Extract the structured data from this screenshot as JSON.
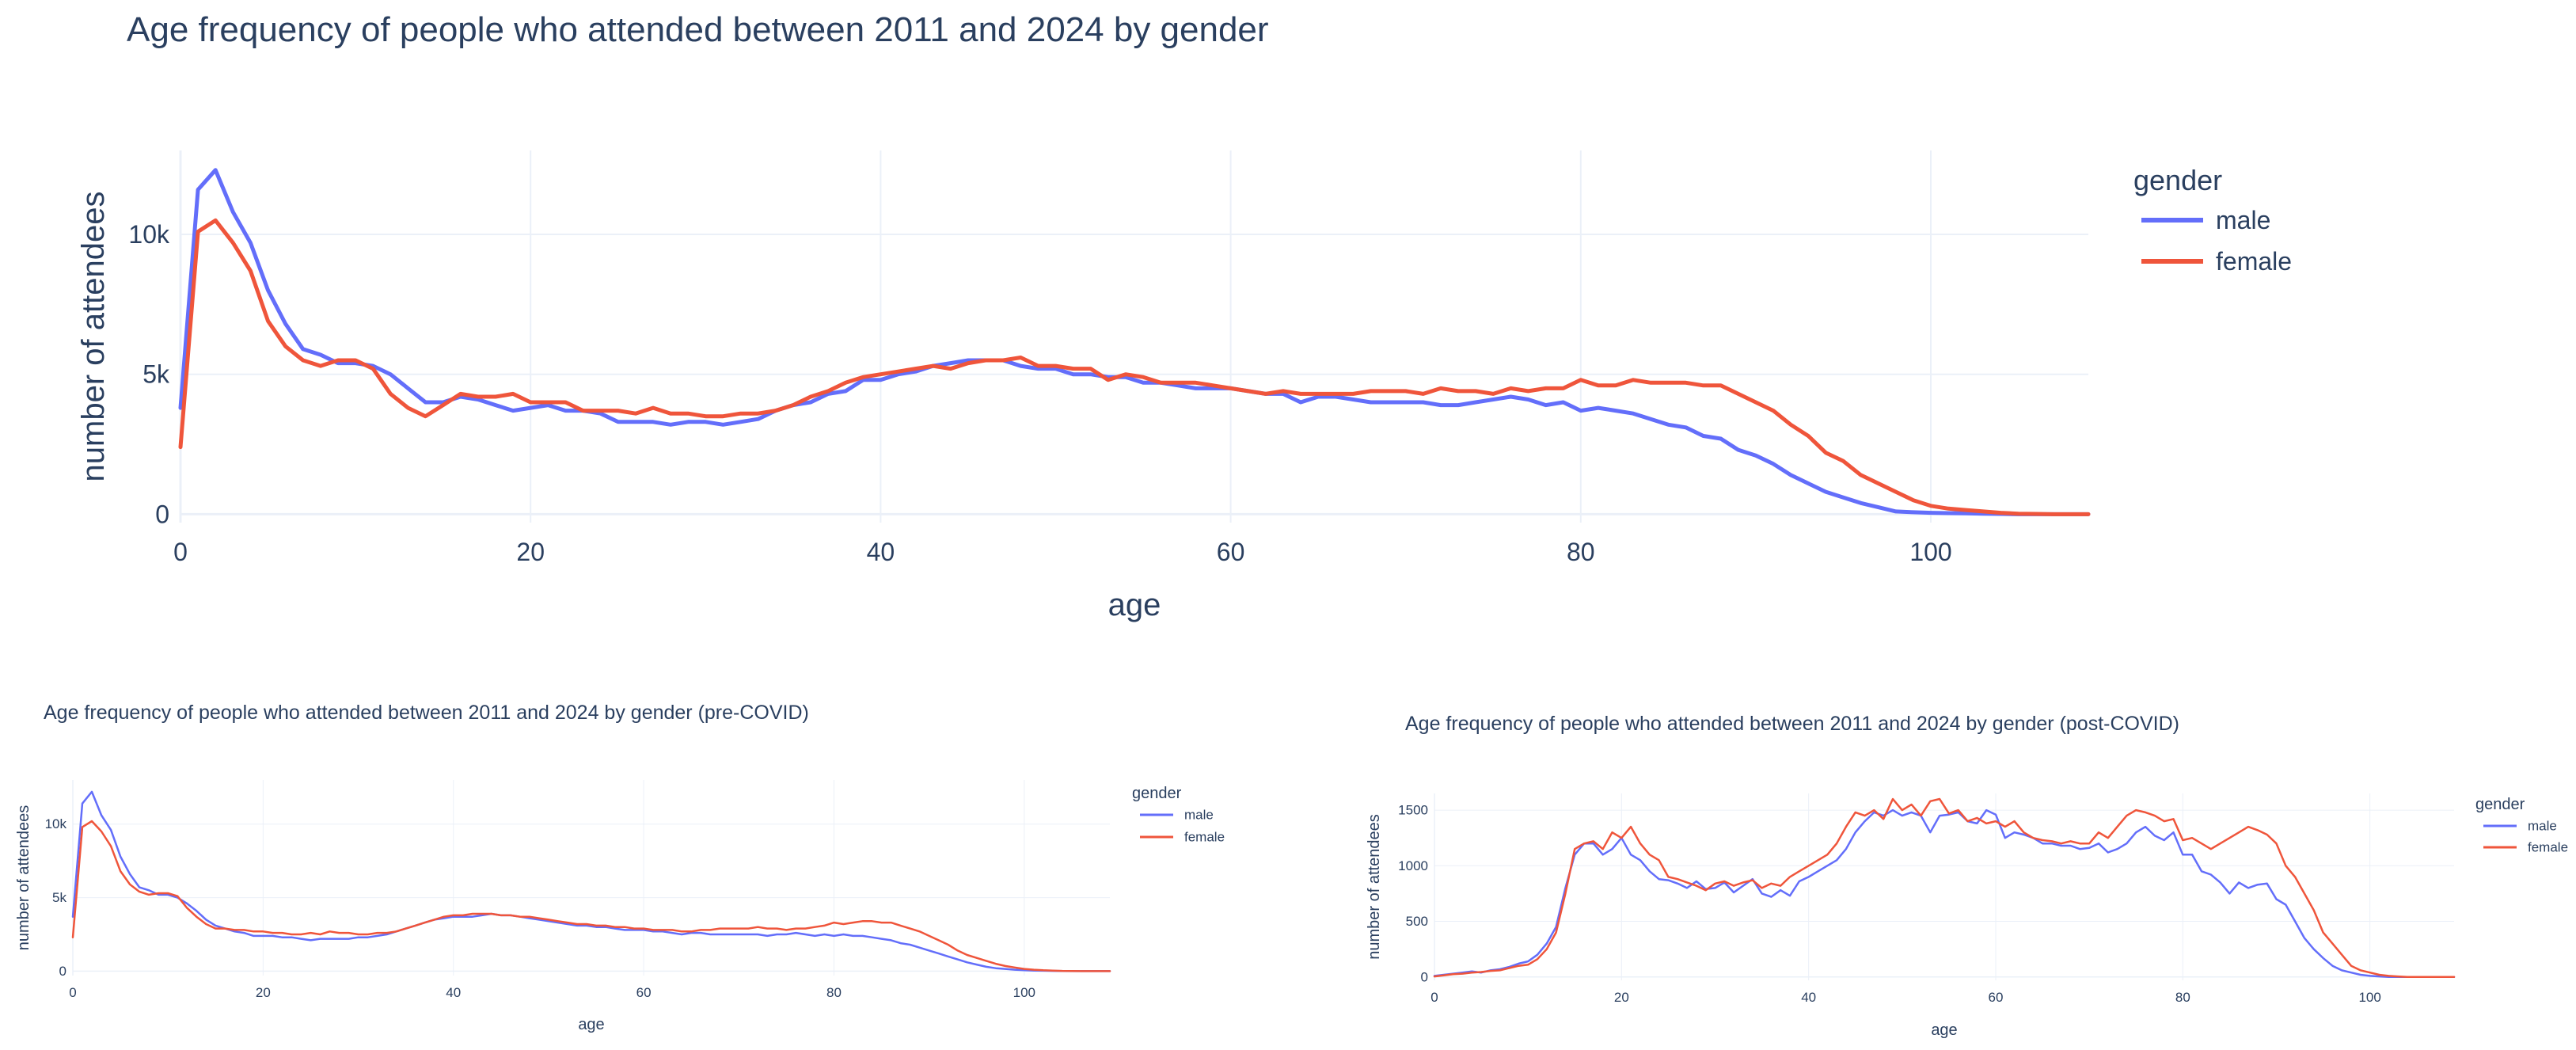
{
  "chart_data": [
    {
      "id": "overall",
      "type": "line",
      "title": "Age frequency of people who attended between 2011 and 2024 by gender",
      "xlabel": "age",
      "ylabel": "number of attendees",
      "xlim": [
        0,
        109
      ],
      "ylim": [
        -300,
        13000
      ],
      "xticks": [
        0,
        20,
        40,
        60,
        80,
        100
      ],
      "xtick_labels": [
        "0",
        "20",
        "40",
        "60",
        "80",
        "100"
      ],
      "yticks": [
        0,
        5000,
        10000
      ],
      "ytick_labels": [
        "0",
        "5k",
        "10k"
      ],
      "legend_title": "gender",
      "legend_position": "top-right outside",
      "x": [
        0,
        1,
        2,
        3,
        4,
        5,
        6,
        7,
        8,
        9,
        10,
        11,
        12,
        13,
        14,
        15,
        16,
        17,
        18,
        19,
        20,
        21,
        22,
        23,
        24,
        25,
        26,
        27,
        28,
        29,
        30,
        31,
        32,
        33,
        34,
        35,
        36,
        37,
        38,
        39,
        40,
        41,
        42,
        43,
        44,
        45,
        46,
        47,
        48,
        49,
        50,
        51,
        52,
        53,
        54,
        55,
        56,
        57,
        58,
        59,
        60,
        61,
        62,
        63,
        64,
        65,
        66,
        67,
        68,
        69,
        70,
        71,
        72,
        73,
        74,
        75,
        76,
        77,
        78,
        79,
        80,
        81,
        82,
        83,
        84,
        85,
        86,
        87,
        88,
        89,
        90,
        91,
        92,
        93,
        94,
        95,
        96,
        97,
        98,
        99,
        100,
        101,
        102,
        103,
        104,
        105,
        106,
        107,
        108,
        109
      ],
      "series": [
        {
          "name": "male",
          "color": "#636efa",
          "values": [
            3800,
            11600,
            12300,
            10800,
            9700,
            8000,
            6800,
            5900,
            5700,
            5400,
            5400,
            5300,
            5000,
            4500,
            4000,
            4000,
            4200,
            4100,
            3900,
            3700,
            3800,
            3900,
            3700,
            3700,
            3600,
            3300,
            3300,
            3300,
            3200,
            3300,
            3300,
            3200,
            3300,
            3400,
            3700,
            3900,
            4000,
            4300,
            4400,
            4800,
            4800,
            5000,
            5100,
            5300,
            5400,
            5500,
            5500,
            5500,
            5300,
            5200,
            5200,
            5000,
            5000,
            4900,
            4900,
            4700,
            4700,
            4600,
            4500,
            4500,
            4500,
            4400,
            4300,
            4300,
            4000,
            4200,
            4200,
            4100,
            4000,
            4000,
            4000,
            4000,
            3900,
            3900,
            4000,
            4100,
            4200,
            4100,
            3900,
            4000,
            3700,
            3800,
            3700,
            3600,
            3400,
            3200,
            3100,
            2800,
            2700,
            2300,
            2100,
            1800,
            1400,
            1100,
            800,
            600,
            400,
            250,
            100,
            70,
            50,
            40,
            30,
            20,
            10,
            0,
            0,
            0,
            0,
            0
          ]
        },
        {
          "name": "female",
          "color": "#ef553b",
          "values": [
            2400,
            10100,
            10500,
            9700,
            8700,
            6900,
            6000,
            5500,
            5300,
            5500,
            5500,
            5200,
            4300,
            3800,
            3500,
            3900,
            4300,
            4200,
            4200,
            4300,
            4000,
            4000,
            4000,
            3700,
            3700,
            3700,
            3600,
            3800,
            3600,
            3600,
            3500,
            3500,
            3600,
            3600,
            3700,
            3900,
            4200,
            4400,
            4700,
            4900,
            5000,
            5100,
            5200,
            5300,
            5200,
            5400,
            5500,
            5500,
            5600,
            5300,
            5300,
            5200,
            5200,
            4800,
            5000,
            4900,
            4700,
            4700,
            4700,
            4600,
            4500,
            4400,
            4300,
            4400,
            4300,
            4300,
            4300,
            4300,
            4400,
            4400,
            4400,
            4300,
            4500,
            4400,
            4400,
            4300,
            4500,
            4400,
            4500,
            4500,
            4800,
            4600,
            4600,
            4800,
            4700,
            4700,
            4700,
            4600,
            4600,
            4300,
            4000,
            3700,
            3200,
            2800,
            2200,
            1900,
            1400,
            1100,
            800,
            500,
            300,
            200,
            150,
            100,
            50,
            20,
            10,
            0,
            0,
            0
          ]
        }
      ]
    },
    {
      "id": "pre",
      "type": "line",
      "title": "Age frequency of people who attended between 2011 and 2024 by gender (pre-COVID)",
      "xlabel": "age",
      "ylabel": "number of attendees",
      "xlim": [
        0,
        109
      ],
      "ylim": [
        -300,
        13000
      ],
      "xticks": [
        0,
        20,
        40,
        60,
        80,
        100
      ],
      "xtick_labels": [
        "0",
        "20",
        "40",
        "60",
        "80",
        "100"
      ],
      "yticks": [
        0,
        5000,
        10000
      ],
      "ytick_labels": [
        "0",
        "5k",
        "10k"
      ],
      "legend_title": "gender",
      "legend_position": "top-right outside",
      "x": [
        0,
        1,
        2,
        3,
        4,
        5,
        6,
        7,
        8,
        9,
        10,
        11,
        12,
        13,
        14,
        15,
        16,
        17,
        18,
        19,
        20,
        21,
        22,
        23,
        24,
        25,
        26,
        27,
        28,
        29,
        30,
        31,
        32,
        33,
        34,
        35,
        36,
        37,
        38,
        39,
        40,
        41,
        42,
        43,
        44,
        45,
        46,
        47,
        48,
        49,
        50,
        51,
        52,
        53,
        54,
        55,
        56,
        57,
        58,
        59,
        60,
        61,
        62,
        63,
        64,
        65,
        66,
        67,
        68,
        69,
        70,
        71,
        72,
        73,
        74,
        75,
        76,
        77,
        78,
        79,
        80,
        81,
        82,
        83,
        84,
        85,
        86,
        87,
        88,
        89,
        90,
        91,
        92,
        93,
        94,
        95,
        96,
        97,
        98,
        99,
        100,
        101,
        102,
        103,
        104,
        105,
        106,
        107,
        108,
        109
      ],
      "series": [
        {
          "name": "male",
          "color": "#636efa",
          "values": [
            3700,
            11400,
            12200,
            10600,
            9600,
            7800,
            6600,
            5700,
            5500,
            5200,
            5200,
            5000,
            4600,
            4100,
            3500,
            3100,
            2900,
            2700,
            2600,
            2400,
            2400,
            2400,
            2300,
            2300,
            2200,
            2100,
            2200,
            2200,
            2200,
            2200,
            2300,
            2300,
            2400,
            2500,
            2700,
            2900,
            3100,
            3300,
            3500,
            3600,
            3700,
            3700,
            3700,
            3800,
            3900,
            3800,
            3800,
            3700,
            3600,
            3500,
            3400,
            3300,
            3200,
            3100,
            3100,
            3000,
            3000,
            2900,
            2800,
            2800,
            2800,
            2700,
            2700,
            2600,
            2500,
            2600,
            2600,
            2500,
            2500,
            2500,
            2500,
            2500,
            2500,
            2400,
            2500,
            2500,
            2600,
            2500,
            2400,
            2500,
            2400,
            2500,
            2400,
            2400,
            2300,
            2200,
            2100,
            1900,
            1800,
            1600,
            1400,
            1200,
            1000,
            800,
            600,
            450,
            300,
            200,
            150,
            100,
            60,
            40,
            30,
            20,
            10,
            0,
            0,
            0,
            0,
            0
          ]
        },
        {
          "name": "female",
          "color": "#ef553b",
          "values": [
            2300,
            9800,
            10200,
            9500,
            8500,
            6800,
            5900,
            5400,
            5200,
            5300,
            5300,
            5100,
            4300,
            3700,
            3200,
            2900,
            2900,
            2800,
            2800,
            2700,
            2700,
            2600,
            2600,
            2500,
            2500,
            2600,
            2500,
            2700,
            2600,
            2600,
            2500,
            2500,
            2600,
            2600,
            2700,
            2900,
            3100,
            3300,
            3500,
            3700,
            3800,
            3800,
            3900,
            3900,
            3900,
            3800,
            3800,
            3700,
            3700,
            3600,
            3500,
            3400,
            3300,
            3200,
            3200,
            3100,
            3100,
            3000,
            3000,
            2900,
            2900,
            2800,
            2800,
            2800,
            2700,
            2700,
            2800,
            2800,
            2900,
            2900,
            2900,
            2900,
            3000,
            2900,
            2900,
            2800,
            2900,
            2900,
            3000,
            3100,
            3300,
            3200,
            3300,
            3400,
            3400,
            3300,
            3300,
            3100,
            2900,
            2700,
            2400,
            2100,
            1800,
            1400,
            1100,
            900,
            700,
            500,
            350,
            250,
            150,
            100,
            60,
            40,
            20,
            10,
            0,
            0,
            0,
            0
          ]
        }
      ]
    },
    {
      "id": "post",
      "type": "line",
      "title": "Age frequency of people who attended between 2011 and 2024 by gender (post-COVID)",
      "xlabel": "age",
      "ylabel": "number of attendees",
      "xlim": [
        0,
        109
      ],
      "ylim": [
        -30,
        1650
      ],
      "xticks": [
        0,
        20,
        40,
        60,
        80,
        100
      ],
      "xtick_labels": [
        "0",
        "20",
        "40",
        "60",
        "80",
        "100"
      ],
      "yticks": [
        0,
        500,
        1000,
        1500
      ],
      "ytick_labels": [
        "0",
        "500",
        "1000",
        "1500"
      ],
      "legend_title": "gender",
      "legend_position": "top-right outside",
      "x": [
        0,
        1,
        2,
        3,
        4,
        5,
        6,
        7,
        8,
        9,
        10,
        11,
        12,
        13,
        14,
        15,
        16,
        17,
        18,
        19,
        20,
        21,
        22,
        23,
        24,
        25,
        26,
        27,
        28,
        29,
        30,
        31,
        32,
        33,
        34,
        35,
        36,
        37,
        38,
        39,
        40,
        41,
        42,
        43,
        44,
        45,
        46,
        47,
        48,
        49,
        50,
        51,
        52,
        53,
        54,
        55,
        56,
        57,
        58,
        59,
        60,
        61,
        62,
        63,
        64,
        65,
        66,
        67,
        68,
        69,
        70,
        71,
        72,
        73,
        74,
        75,
        76,
        77,
        78,
        79,
        80,
        81,
        82,
        83,
        84,
        85,
        86,
        87,
        88,
        89,
        90,
        91,
        92,
        93,
        94,
        95,
        96,
        97,
        98,
        99,
        100,
        101,
        102,
        103,
        104,
        105,
        106,
        107,
        108,
        109
      ],
      "series": [
        {
          "name": "male",
          "color": "#636efa",
          "values": [
            10,
            20,
            30,
            40,
            50,
            40,
            60,
            70,
            90,
            120,
            140,
            200,
            300,
            450,
            800,
            1100,
            1200,
            1200,
            1100,
            1150,
            1250,
            1100,
            1050,
            950,
            880,
            870,
            840,
            800,
            860,
            790,
            800,
            850,
            760,
            820,
            880,
            750,
            720,
            780,
            730,
            860,
            900,
            950,
            1000,
            1050,
            1150,
            1300,
            1400,
            1480,
            1450,
            1500,
            1450,
            1480,
            1450,
            1300,
            1450,
            1460,
            1480,
            1400,
            1380,
            1500,
            1460,
            1250,
            1300,
            1280,
            1250,
            1200,
            1200,
            1180,
            1180,
            1150,
            1160,
            1200,
            1120,
            1150,
            1200,
            1300,
            1350,
            1270,
            1230,
            1300,
            1100,
            1100,
            950,
            920,
            850,
            750,
            850,
            800,
            830,
            840,
            700,
            650,
            500,
            350,
            250,
            170,
            100,
            60,
            40,
            20,
            10,
            5,
            0,
            0,
            0,
            0,
            0,
            0,
            0,
            0
          ]
        },
        {
          "name": "female",
          "color": "#ef553b",
          "values": [
            5,
            15,
            25,
            30,
            40,
            45,
            55,
            60,
            80,
            100,
            110,
            160,
            250,
            400,
            750,
            1150,
            1200,
            1220,
            1150,
            1300,
            1250,
            1350,
            1200,
            1100,
            1050,
            900,
            880,
            850,
            820,
            780,
            840,
            860,
            820,
            850,
            870,
            800,
            840,
            820,
            900,
            950,
            1000,
            1050,
            1100,
            1200,
            1350,
            1480,
            1450,
            1500,
            1420,
            1600,
            1500,
            1550,
            1450,
            1580,
            1600,
            1470,
            1500,
            1400,
            1430,
            1380,
            1400,
            1350,
            1400,
            1300,
            1250,
            1230,
            1220,
            1200,
            1220,
            1200,
            1200,
            1300,
            1250,
            1350,
            1450,
            1500,
            1480,
            1450,
            1400,
            1420,
            1230,
            1250,
            1200,
            1150,
            1200,
            1250,
            1300,
            1350,
            1320,
            1280,
            1200,
            1000,
            900,
            750,
            600,
            400,
            300,
            200,
            100,
            60,
            40,
            20,
            10,
            5,
            0,
            0,
            0,
            0,
            0,
            0
          ]
        }
      ]
    }
  ]
}
